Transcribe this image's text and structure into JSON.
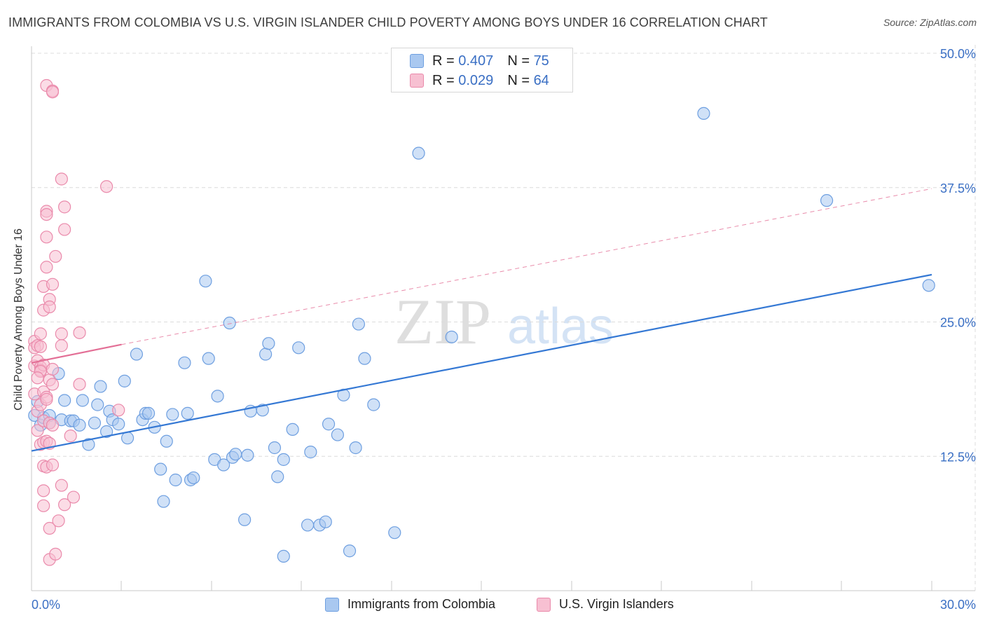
{
  "header": {
    "title": "IMMIGRANTS FROM COLOMBIA VS U.S. VIRGIN ISLANDER CHILD POVERTY AMONG BOYS UNDER 16 CORRELATION CHART",
    "source": "Source: ZipAtlas.com"
  },
  "legend": {
    "r_label": "R =",
    "n_label": "N =",
    "series": [
      {
        "r": "0.407",
        "n": "75",
        "color": "#a9c8f0",
        "border": "#6e9fe0"
      },
      {
        "r": "0.029",
        "n": "64",
        "color": "#f7c0d2",
        "border": "#ea8aab"
      }
    ]
  },
  "bottom_legend": [
    {
      "label": "Immigrants from Colombia",
      "color": "#a9c8f0",
      "border": "#6e9fe0"
    },
    {
      "label": "U.S. Virgin Islanders",
      "color": "#f7c0d2",
      "border": "#ea8aab"
    }
  ],
  "watermark": {
    "zip": "ZIP",
    "atlas": "atlas"
  },
  "chart_data": {
    "type": "scatter",
    "title": "IMMIGRANTS FROM COLOMBIA VS U.S. VIRGIN ISLANDER CHILD POVERTY AMONG BOYS UNDER 16 CORRELATION CHART",
    "xlabel": "",
    "ylabel": "Child Poverty Among Boys Under 16",
    "xlim": [
      0,
      30
    ],
    "ylim": [
      0,
      50
    ],
    "x_ticks": [
      "0.0%",
      "30.0%"
    ],
    "y_ticks": [
      {
        "value": 12.5,
        "label": "12.5%"
      },
      {
        "value": 25.0,
        "label": "25.0%"
      },
      {
        "value": 37.5,
        "label": "37.5%"
      },
      {
        "value": 50.0,
        "label": "50.0%"
      }
    ],
    "grid": true,
    "series": [
      {
        "name": "Immigrants from Colombia",
        "color": "#6e9fe0",
        "fill": "#a9c8f0",
        "trend": {
          "x0": 0,
          "y0": 13.0,
          "x1": 30,
          "y1": 29.4,
          "style": "solid",
          "color": "#3478d4"
        },
        "points": [
          [
            0.1,
            16.3
          ],
          [
            0.2,
            17.6
          ],
          [
            0.3,
            15.4
          ],
          [
            0.4,
            16.1
          ],
          [
            0.6,
            15.6
          ],
          [
            0.9,
            20.2
          ],
          [
            1.0,
            15.9
          ],
          [
            1.1,
            17.7
          ],
          [
            1.3,
            15.8
          ],
          [
            1.4,
            15.8
          ],
          [
            1.6,
            15.4
          ],
          [
            1.7,
            17.7
          ],
          [
            1.9,
            13.6
          ],
          [
            2.1,
            15.6
          ],
          [
            2.2,
            17.3
          ],
          [
            2.3,
            19.0
          ],
          [
            2.5,
            14.8
          ],
          [
            2.6,
            16.7
          ],
          [
            2.7,
            15.9
          ],
          [
            2.9,
            15.5
          ],
          [
            3.1,
            19.5
          ],
          [
            3.2,
            14.2
          ],
          [
            3.5,
            22.0
          ],
          [
            3.7,
            15.9
          ],
          [
            3.8,
            16.5
          ],
          [
            3.9,
            16.5
          ],
          [
            4.1,
            15.2
          ],
          [
            4.3,
            11.3
          ],
          [
            4.4,
            8.3
          ],
          [
            4.5,
            13.9
          ],
          [
            4.7,
            16.4
          ],
          [
            4.8,
            10.3
          ],
          [
            5.1,
            21.2
          ],
          [
            5.2,
            16.5
          ],
          [
            5.3,
            10.3
          ],
          [
            5.4,
            10.5
          ],
          [
            5.8,
            28.8
          ],
          [
            5.9,
            21.6
          ],
          [
            6.1,
            12.2
          ],
          [
            6.2,
            18.1
          ],
          [
            6.4,
            11.7
          ],
          [
            6.6,
            24.9
          ],
          [
            6.7,
            12.4
          ],
          [
            6.8,
            12.7
          ],
          [
            7.1,
            6.6
          ],
          [
            7.2,
            12.6
          ],
          [
            7.3,
            16.7
          ],
          [
            7.7,
            16.8
          ],
          [
            7.8,
            22.0
          ],
          [
            7.9,
            23.0
          ],
          [
            8.1,
            13.3
          ],
          [
            8.2,
            10.6
          ],
          [
            8.4,
            3.2
          ],
          [
            8.4,
            12.2
          ],
          [
            8.7,
            15.0
          ],
          [
            8.9,
            22.6
          ],
          [
            9.2,
            6.1
          ],
          [
            9.3,
            12.9
          ],
          [
            9.6,
            6.1
          ],
          [
            9.8,
            6.4
          ],
          [
            9.9,
            15.5
          ],
          [
            10.2,
            14.5
          ],
          [
            10.4,
            18.2
          ],
          [
            10.6,
            3.7
          ],
          [
            10.8,
            13.3
          ],
          [
            10.9,
            24.8
          ],
          [
            11.1,
            21.6
          ],
          [
            11.4,
            17.3
          ],
          [
            12.1,
            5.4
          ],
          [
            12.9,
            40.7
          ],
          [
            14.0,
            23.6
          ],
          [
            22.4,
            44.4
          ],
          [
            26.5,
            36.3
          ],
          [
            29.9,
            28.4
          ],
          [
            0.6,
            16.3
          ]
        ]
      },
      {
        "name": "U.S. Virgin Islanders",
        "color": "#ea8aab",
        "fill": "#f7c0d2",
        "trend": {
          "x0": 0,
          "y0": 21.2,
          "x1": 3.0,
          "y1": 22.9,
          "style": "solid",
          "color": "#e36f96",
          "ext_x1": 30,
          "ext_y1": 37.4,
          "ext_style": "dashed"
        },
        "points": [
          [
            0.1,
            23.2
          ],
          [
            0.1,
            22.6
          ],
          [
            0.1,
            20.9
          ],
          [
            0.1,
            18.3
          ],
          [
            0.2,
            16.7
          ],
          [
            0.2,
            14.9
          ],
          [
            0.2,
            21.4
          ],
          [
            0.2,
            22.8
          ],
          [
            0.3,
            23.9
          ],
          [
            0.3,
            22.7
          ],
          [
            0.3,
            20.8
          ],
          [
            0.3,
            20.5
          ],
          [
            0.3,
            17.3
          ],
          [
            0.3,
            13.6
          ],
          [
            0.4,
            28.3
          ],
          [
            0.4,
            26.1
          ],
          [
            0.4,
            21.0
          ],
          [
            0.4,
            18.5
          ],
          [
            0.4,
            15.8
          ],
          [
            0.4,
            13.8
          ],
          [
            0.4,
            11.6
          ],
          [
            0.4,
            9.3
          ],
          [
            0.4,
            7.9
          ],
          [
            0.5,
            47.0
          ],
          [
            0.5,
            35.3
          ],
          [
            0.5,
            35.0
          ],
          [
            0.5,
            32.9
          ],
          [
            0.5,
            30.1
          ],
          [
            0.5,
            18.0
          ],
          [
            0.5,
            13.9
          ],
          [
            0.5,
            11.5
          ],
          [
            0.6,
            27.1
          ],
          [
            0.6,
            26.4
          ],
          [
            0.6,
            19.6
          ],
          [
            0.6,
            15.6
          ],
          [
            0.6,
            13.7
          ],
          [
            0.6,
            5.8
          ],
          [
            0.6,
            2.9
          ],
          [
            0.7,
            46.5
          ],
          [
            0.7,
            46.4
          ],
          [
            0.7,
            28.5
          ],
          [
            0.7,
            20.6
          ],
          [
            0.7,
            19.2
          ],
          [
            0.7,
            15.4
          ],
          [
            0.7,
            11.7
          ],
          [
            0.8,
            31.1
          ],
          [
            0.8,
            3.4
          ],
          [
            0.9,
            6.5
          ],
          [
            1.0,
            38.3
          ],
          [
            1.0,
            23.9
          ],
          [
            1.0,
            22.8
          ],
          [
            1.0,
            9.8
          ],
          [
            1.1,
            33.6
          ],
          [
            1.1,
            35.7
          ],
          [
            1.1,
            8.0
          ],
          [
            1.3,
            14.4
          ],
          [
            1.4,
            8.7
          ],
          [
            1.6,
            24.0
          ],
          [
            1.6,
            19.2
          ],
          [
            2.5,
            37.6
          ],
          [
            2.9,
            16.8
          ],
          [
            0.3,
            20.4
          ],
          [
            0.5,
            17.8
          ],
          [
            0.2,
            19.8
          ]
        ]
      }
    ]
  }
}
